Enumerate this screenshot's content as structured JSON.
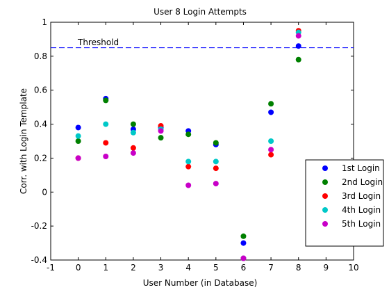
{
  "chart_data": {
    "type": "scatter",
    "title": "User 8 Login Attempts",
    "xlabel": "User Number (in Database)",
    "ylabel": "Corr. with Login Template",
    "xlim": [
      -1,
      10
    ],
    "ylim": [
      -0.4,
      1
    ],
    "xticks": [
      -1,
      0,
      1,
      2,
      3,
      4,
      5,
      6,
      7,
      8,
      9,
      10
    ],
    "xtick_labels": [
      "-1",
      "0",
      "1",
      "2",
      "3",
      "4",
      "5",
      "6",
      "7",
      "8",
      "9",
      "10"
    ],
    "yticks": [
      -0.4,
      -0.2,
      0,
      0.2,
      0.4,
      0.6,
      0.8,
      1
    ],
    "ytick_labels": [
      "-0.4",
      "-0.2",
      "0",
      "0.2",
      "0.4",
      "0.6",
      "0.8",
      "1"
    ],
    "grid": false,
    "legend_position": "right",
    "threshold": {
      "value": 0.85,
      "label": "Threshold",
      "color": "#0000ff"
    },
    "x": [
      0,
      1,
      2,
      3,
      4,
      5,
      6,
      7,
      8
    ],
    "series": [
      {
        "name": "1st Login",
        "color": "#0000ff",
        "values": [
          0.38,
          0.55,
          0.37,
          0.38,
          0.36,
          0.28,
          -0.3,
          0.47,
          0.86
        ]
      },
      {
        "name": "2nd Login",
        "color": "#008000",
        "values": [
          0.3,
          0.54,
          0.4,
          0.32,
          0.34,
          0.29,
          -0.26,
          0.52,
          0.78
        ]
      },
      {
        "name": "3rd Login",
        "color": "#ff0000",
        "values": [
          0.2,
          0.29,
          0.26,
          0.39,
          0.15,
          0.14,
          -0.39,
          0.22,
          0.95
        ]
      },
      {
        "name": "4th Login",
        "color": "#00c8c8",
        "values": [
          0.33,
          0.4,
          0.35,
          0.37,
          0.18,
          0.18,
          -0.39,
          0.3,
          0.94
        ]
      },
      {
        "name": "5th Login",
        "color": "#c800c8",
        "values": [
          0.2,
          0.21,
          0.23,
          0.36,
          0.04,
          0.05,
          -0.39,
          0.25,
          0.92
        ]
      }
    ]
  }
}
